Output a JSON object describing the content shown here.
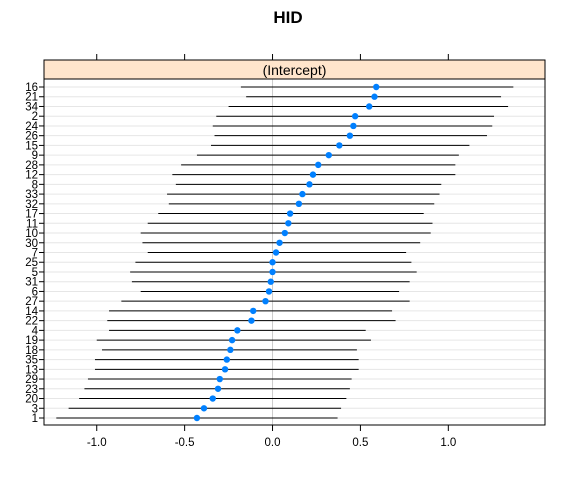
{
  "chart_data": {
    "type": "dotplot",
    "title": "HID",
    "strip_label": "(Intercept)",
    "xlabel": "",
    "ylabel": "",
    "xlim": [
      -1.3,
      1.55
    ],
    "x_ticks": [
      -1.0,
      -0.5,
      0.0,
      0.5,
      1.0
    ],
    "x_tick_labels": [
      "-1.0",
      "-0.5",
      "0.0",
      "0.5",
      "1.0"
    ],
    "grid": true,
    "zero_line": true,
    "colors": {
      "point": "#0080ff",
      "interval": "#000000",
      "strip_bg": "#ffe5cc",
      "grid": "#e6e6e6",
      "zero_line": "#cccccc"
    },
    "categories": [
      "1",
      "3",
      "20",
      "23",
      "29",
      "13",
      "35",
      "18",
      "19",
      "4",
      "22",
      "14",
      "27",
      "6",
      "31",
      "5",
      "25",
      "7",
      "30",
      "10",
      "11",
      "17",
      "32",
      "33",
      "8",
      "12",
      "28",
      "9",
      "15",
      "26",
      "24",
      "2",
      "34",
      "21",
      "16"
    ],
    "values": [
      -0.43,
      -0.39,
      -0.34,
      -0.31,
      -0.3,
      -0.27,
      -0.26,
      -0.24,
      -0.23,
      -0.2,
      -0.12,
      -0.11,
      -0.04,
      -0.02,
      -0.01,
      0.0,
      0.0,
      0.02,
      0.04,
      0.07,
      0.09,
      0.1,
      0.15,
      0.17,
      0.21,
      0.23,
      0.26,
      0.32,
      0.38,
      0.44,
      0.46,
      0.47,
      0.55,
      0.58,
      0.59
    ],
    "lower": [
      -1.23,
      -1.16,
      -1.1,
      -1.07,
      -1.05,
      -1.01,
      -1.01,
      -0.97,
      -1.0,
      -0.93,
      -0.94,
      -0.93,
      -0.86,
      -0.75,
      -0.8,
      -0.81,
      -0.78,
      -0.71,
      -0.74,
      -0.75,
      -0.71,
      -0.65,
      -0.59,
      -0.6,
      -0.55,
      -0.57,
      -0.52,
      -0.43,
      -0.35,
      -0.33,
      -0.34,
      -0.32,
      -0.25,
      -0.15,
      -0.18
    ],
    "upper": [
      0.37,
      0.39,
      0.42,
      0.44,
      0.45,
      0.49,
      0.49,
      0.48,
      0.56,
      0.53,
      0.7,
      0.68,
      0.78,
      0.72,
      0.78,
      0.82,
      0.79,
      0.76,
      0.84,
      0.9,
      0.91,
      0.86,
      0.92,
      0.95,
      0.96,
      1.04,
      1.04,
      1.06,
      1.12,
      1.22,
      1.25,
      1.26,
      1.34,
      1.3,
      1.37
    ]
  }
}
